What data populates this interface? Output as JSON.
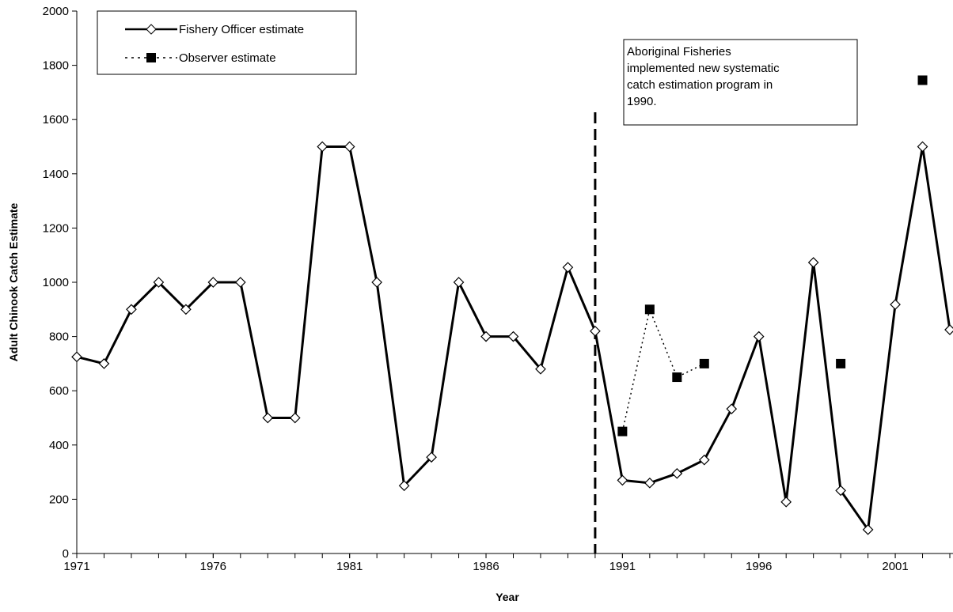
{
  "chart_data": {
    "type": "line",
    "xlabel": "Year",
    "ylabel": "Adult Chinook Catch Estimate",
    "x": [
      1971,
      1972,
      1973,
      1974,
      1975,
      1976,
      1977,
      1978,
      1979,
      1980,
      1981,
      1982,
      1983,
      1984,
      1985,
      1986,
      1987,
      1988,
      1989,
      1990,
      1991,
      1992,
      1993,
      1994,
      1995,
      1996,
      1997,
      1998,
      1999,
      2000,
      2001,
      2002,
      2003
    ],
    "series": [
      {
        "name": "Fishery Officer estimate",
        "color": "#000000",
        "style": "solid",
        "marker": "diamond",
        "values": [
          725,
          700,
          900,
          1000,
          900,
          1000,
          1000,
          500,
          500,
          1500,
          1500,
          1000,
          250,
          355,
          1000,
          800,
          800,
          680,
          1055,
          820,
          270,
          260,
          295,
          345,
          533,
          800,
          190,
          1073,
          232,
          88,
          918,
          1500,
          825
        ]
      },
      {
        "name": "Observer estimate",
        "color": "#000000",
        "style": "dotted",
        "marker": "square",
        "values": [
          null,
          null,
          null,
          null,
          null,
          null,
          null,
          null,
          null,
          null,
          null,
          null,
          null,
          null,
          null,
          null,
          null,
          null,
          null,
          null,
          450,
          900,
          650,
          700,
          null,
          null,
          null,
          null,
          700,
          null,
          null,
          1745,
          null
        ]
      }
    ],
    "xlim": [
      1971,
      2003
    ],
    "ylim": [
      0,
      2000
    ],
    "xticks": [
      1971,
      1976,
      1981,
      1986,
      1991,
      1996,
      2001
    ],
    "yticks": [
      0,
      200,
      400,
      600,
      800,
      1000,
      1200,
      1400,
      1600,
      1800,
      2000
    ],
    "vline_x": 1990,
    "annotation": [
      "Aboriginal Fisheries",
      "implemented new systematic",
      "catch estimation program in",
      "1990."
    ]
  }
}
